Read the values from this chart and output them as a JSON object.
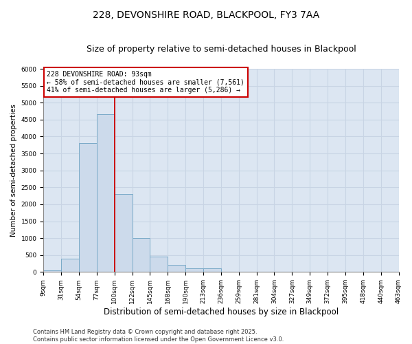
{
  "title": "228, DEVONSHIRE ROAD, BLACKPOOL, FY3 7AA",
  "subtitle": "Size of property relative to semi-detached houses in Blackpool",
  "xlabel": "Distribution of semi-detached houses by size in Blackpool",
  "ylabel": "Number of semi-detached properties",
  "bin_labels": [
    "9sqm",
    "31sqm",
    "54sqm",
    "77sqm",
    "100sqm",
    "122sqm",
    "145sqm",
    "168sqm",
    "190sqm",
    "213sqm",
    "236sqm",
    "259sqm",
    "281sqm",
    "304sqm",
    "327sqm",
    "349sqm",
    "372sqm",
    "395sqm",
    "418sqm",
    "440sqm",
    "463sqm"
  ],
  "bar_heights": [
    50,
    400,
    3800,
    4650,
    2300,
    1000,
    450,
    220,
    110,
    100,
    0,
    0,
    0,
    0,
    0,
    0,
    0,
    0,
    0,
    0
  ],
  "bar_color": "#ccdaeb",
  "bar_edge_color": "#7aaac8",
  "grid_color": "#c8d4e4",
  "background_color": "#dce6f2",
  "red_line_x": 4.0,
  "annotation_text": "228 DEVONSHIRE ROAD: 93sqm\n← 58% of semi-detached houses are smaller (7,561)\n41% of semi-detached houses are larger (5,286) →",
  "annotation_box_color": "#ffffff",
  "annotation_box_edge": "#cc0000",
  "ylim": [
    0,
    6000
  ],
  "yticks": [
    0,
    500,
    1000,
    1500,
    2000,
    2500,
    3000,
    3500,
    4000,
    4500,
    5000,
    5500,
    6000
  ],
  "footer_text": "Contains HM Land Registry data © Crown copyright and database right 2025.\nContains public sector information licensed under the Open Government Licence v3.0.",
  "title_fontsize": 10,
  "subtitle_fontsize": 9,
  "xlabel_fontsize": 8.5,
  "ylabel_fontsize": 7.5,
  "tick_fontsize": 6.5,
  "annotation_fontsize": 7,
  "footer_fontsize": 6
}
